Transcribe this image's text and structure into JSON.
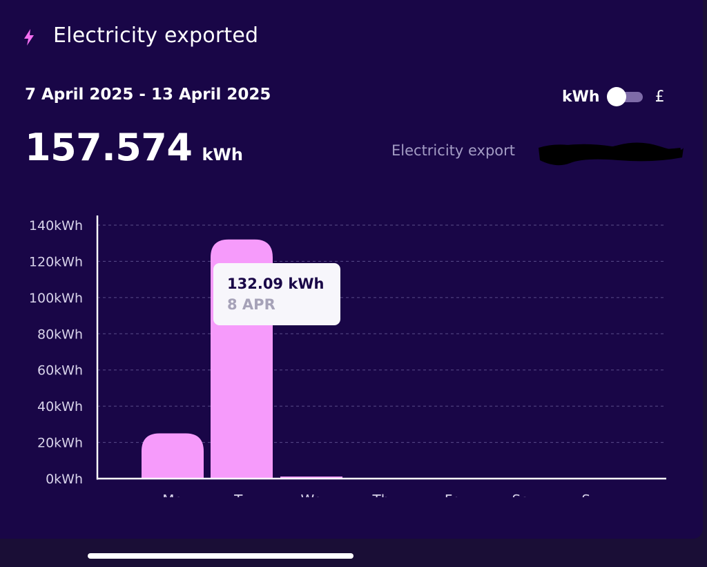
{
  "header": {
    "title": "Electricity exported",
    "icon": "lightning-icon"
  },
  "period": {
    "date_range": "7 April 2025 - 13 April 2025"
  },
  "unit_toggle": {
    "left_label": "kWh",
    "right_label": "£",
    "selected": "kWh"
  },
  "summary": {
    "total_value": "157.574",
    "total_unit": "kWh",
    "source_label": "Electricity export"
  },
  "tooltip": {
    "value": "132.09 kWh",
    "date": "8 APR"
  },
  "colors": {
    "background": "#190647",
    "bar": "#f69bfb",
    "accent_icon": "#f26ff0"
  },
  "chart_data": {
    "type": "bar",
    "categories": [
      "Mo",
      "Tu",
      "We",
      "Th",
      "Fr",
      "Sa",
      "Su"
    ],
    "values": [
      25,
      132.09,
      0.5,
      0,
      0,
      0,
      0
    ],
    "ylim": [
      0,
      140
    ],
    "yticks": [
      "0kWh",
      "20kWh",
      "40kWh",
      "60kWh",
      "80kWh",
      "100kWh",
      "120kWh",
      "140kWh"
    ],
    "grid": true,
    "highlighted_index": 1
  }
}
